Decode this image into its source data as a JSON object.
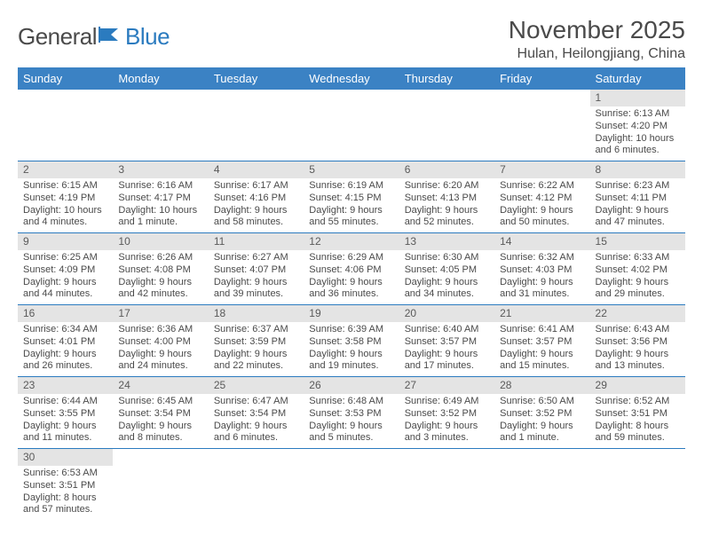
{
  "brand": {
    "part1": "General",
    "part2": "Blue"
  },
  "title": "November 2025",
  "location": "Hulan, Heilongjiang, China",
  "colors": {
    "header_bg": "#3b82c4",
    "header_text": "#ffffff",
    "daynum_bg": "#e4e4e4",
    "row_divider": "#2b7bbf",
    "text": "#4a4a4a",
    "brand_blue": "#2b7bbf"
  },
  "weekdays": [
    "Sunday",
    "Monday",
    "Tuesday",
    "Wednesday",
    "Thursday",
    "Friday",
    "Saturday"
  ],
  "weeks": [
    {
      "nums": [
        "",
        "",
        "",
        "",
        "",
        "",
        "1"
      ],
      "cells": [
        null,
        null,
        null,
        null,
        null,
        null,
        {
          "sunrise": "6:13 AM",
          "sunset": "4:20 PM",
          "daylight": "10 hours and 6 minutes."
        }
      ]
    },
    {
      "nums": [
        "2",
        "3",
        "4",
        "5",
        "6",
        "7",
        "8"
      ],
      "cells": [
        {
          "sunrise": "6:15 AM",
          "sunset": "4:19 PM",
          "daylight": "10 hours and 4 minutes."
        },
        {
          "sunrise": "6:16 AM",
          "sunset": "4:17 PM",
          "daylight": "10 hours and 1 minute."
        },
        {
          "sunrise": "6:17 AM",
          "sunset": "4:16 PM",
          "daylight": "9 hours and 58 minutes."
        },
        {
          "sunrise": "6:19 AM",
          "sunset": "4:15 PM",
          "daylight": "9 hours and 55 minutes."
        },
        {
          "sunrise": "6:20 AM",
          "sunset": "4:13 PM",
          "daylight": "9 hours and 52 minutes."
        },
        {
          "sunrise": "6:22 AM",
          "sunset": "4:12 PM",
          "daylight": "9 hours and 50 minutes."
        },
        {
          "sunrise": "6:23 AM",
          "sunset": "4:11 PM",
          "daylight": "9 hours and 47 minutes."
        }
      ]
    },
    {
      "nums": [
        "9",
        "10",
        "11",
        "12",
        "13",
        "14",
        "15"
      ],
      "cells": [
        {
          "sunrise": "6:25 AM",
          "sunset": "4:09 PM",
          "daylight": "9 hours and 44 minutes."
        },
        {
          "sunrise": "6:26 AM",
          "sunset": "4:08 PM",
          "daylight": "9 hours and 42 minutes."
        },
        {
          "sunrise": "6:27 AM",
          "sunset": "4:07 PM",
          "daylight": "9 hours and 39 minutes."
        },
        {
          "sunrise": "6:29 AM",
          "sunset": "4:06 PM",
          "daylight": "9 hours and 36 minutes."
        },
        {
          "sunrise": "6:30 AM",
          "sunset": "4:05 PM",
          "daylight": "9 hours and 34 minutes."
        },
        {
          "sunrise": "6:32 AM",
          "sunset": "4:03 PM",
          "daylight": "9 hours and 31 minutes."
        },
        {
          "sunrise": "6:33 AM",
          "sunset": "4:02 PM",
          "daylight": "9 hours and 29 minutes."
        }
      ]
    },
    {
      "nums": [
        "16",
        "17",
        "18",
        "19",
        "20",
        "21",
        "22"
      ],
      "cells": [
        {
          "sunrise": "6:34 AM",
          "sunset": "4:01 PM",
          "daylight": "9 hours and 26 minutes."
        },
        {
          "sunrise": "6:36 AM",
          "sunset": "4:00 PM",
          "daylight": "9 hours and 24 minutes."
        },
        {
          "sunrise": "6:37 AM",
          "sunset": "3:59 PM",
          "daylight": "9 hours and 22 minutes."
        },
        {
          "sunrise": "6:39 AM",
          "sunset": "3:58 PM",
          "daylight": "9 hours and 19 minutes."
        },
        {
          "sunrise": "6:40 AM",
          "sunset": "3:57 PM",
          "daylight": "9 hours and 17 minutes."
        },
        {
          "sunrise": "6:41 AM",
          "sunset": "3:57 PM",
          "daylight": "9 hours and 15 minutes."
        },
        {
          "sunrise": "6:43 AM",
          "sunset": "3:56 PM",
          "daylight": "9 hours and 13 minutes."
        }
      ]
    },
    {
      "nums": [
        "23",
        "24",
        "25",
        "26",
        "27",
        "28",
        "29"
      ],
      "cells": [
        {
          "sunrise": "6:44 AM",
          "sunset": "3:55 PM",
          "daylight": "9 hours and 11 minutes."
        },
        {
          "sunrise": "6:45 AM",
          "sunset": "3:54 PM",
          "daylight": "9 hours and 8 minutes."
        },
        {
          "sunrise": "6:47 AM",
          "sunset": "3:54 PM",
          "daylight": "9 hours and 6 minutes."
        },
        {
          "sunrise": "6:48 AM",
          "sunset": "3:53 PM",
          "daylight": "9 hours and 5 minutes."
        },
        {
          "sunrise": "6:49 AM",
          "sunset": "3:52 PM",
          "daylight": "9 hours and 3 minutes."
        },
        {
          "sunrise": "6:50 AM",
          "sunset": "3:52 PM",
          "daylight": "9 hours and 1 minute."
        },
        {
          "sunrise": "6:52 AM",
          "sunset": "3:51 PM",
          "daylight": "8 hours and 59 minutes."
        }
      ]
    },
    {
      "nums": [
        "30",
        "",
        "",
        "",
        "",
        "",
        ""
      ],
      "cells": [
        {
          "sunrise": "6:53 AM",
          "sunset": "3:51 PM",
          "daylight": "8 hours and 57 minutes."
        },
        null,
        null,
        null,
        null,
        null,
        null
      ]
    }
  ],
  "labels": {
    "sunrise": "Sunrise: ",
    "sunset": "Sunset: ",
    "daylight": "Daylight: "
  }
}
